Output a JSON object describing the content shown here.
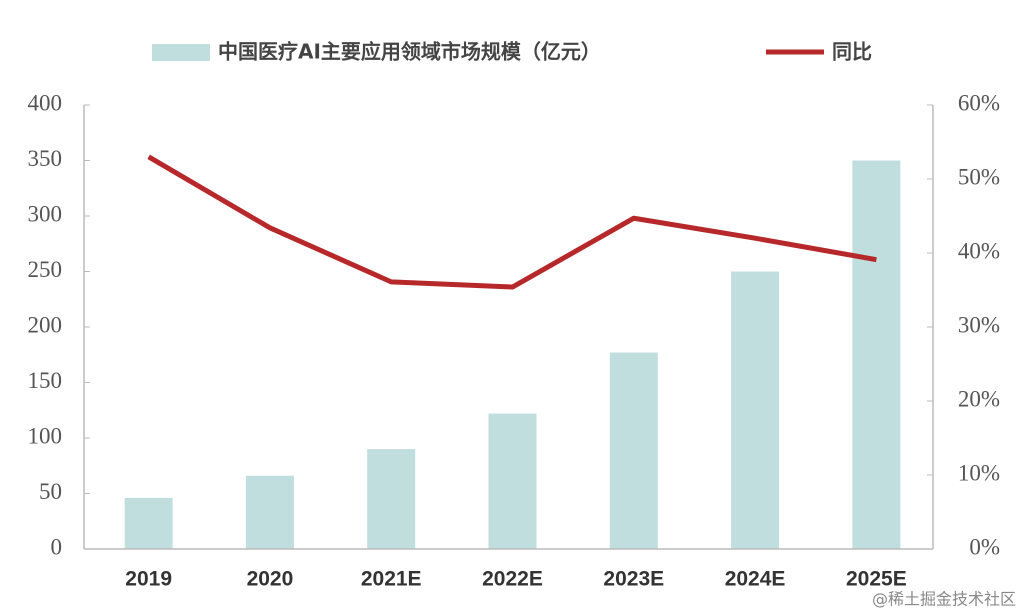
{
  "chart_data": {
    "type": "bar",
    "categories": [
      "2019",
      "2020",
      "2021E",
      "2022E",
      "2023E",
      "2024E",
      "2025E"
    ],
    "series": [
      {
        "name": "中国医疗AI主要应用领域市场规模（亿元）",
        "type": "bar",
        "color": "#bfdedd",
        "values": [
          46,
          66,
          90,
          122,
          177,
          250,
          350
        ]
      },
      {
        "name": "同比",
        "type": "line",
        "axis": "y2",
        "color": "#b7282b",
        "values": [
          53,
          43.4,
          36.1,
          35.4,
          44.7,
          42,
          39.1
        ]
      }
    ],
    "ylim": [
      0,
      400
    ],
    "yticks": [
      0,
      50,
      100,
      150,
      200,
      250,
      300,
      350,
      400
    ],
    "y2lim": [
      0,
      60
    ],
    "y2ticks": [
      {
        "value": 0,
        "label": "0%"
      },
      {
        "value": 10,
        "label": "10%"
      },
      {
        "value": 20,
        "label": "20%"
      },
      {
        "value": 30,
        "label": "30%"
      },
      {
        "value": 40,
        "label": "40%"
      },
      {
        "value": 50,
        "label": "50%"
      },
      {
        "value": 60,
        "label": "60%"
      }
    ],
    "legend": "top",
    "watermark": "@稀土掘金技术社区"
  }
}
